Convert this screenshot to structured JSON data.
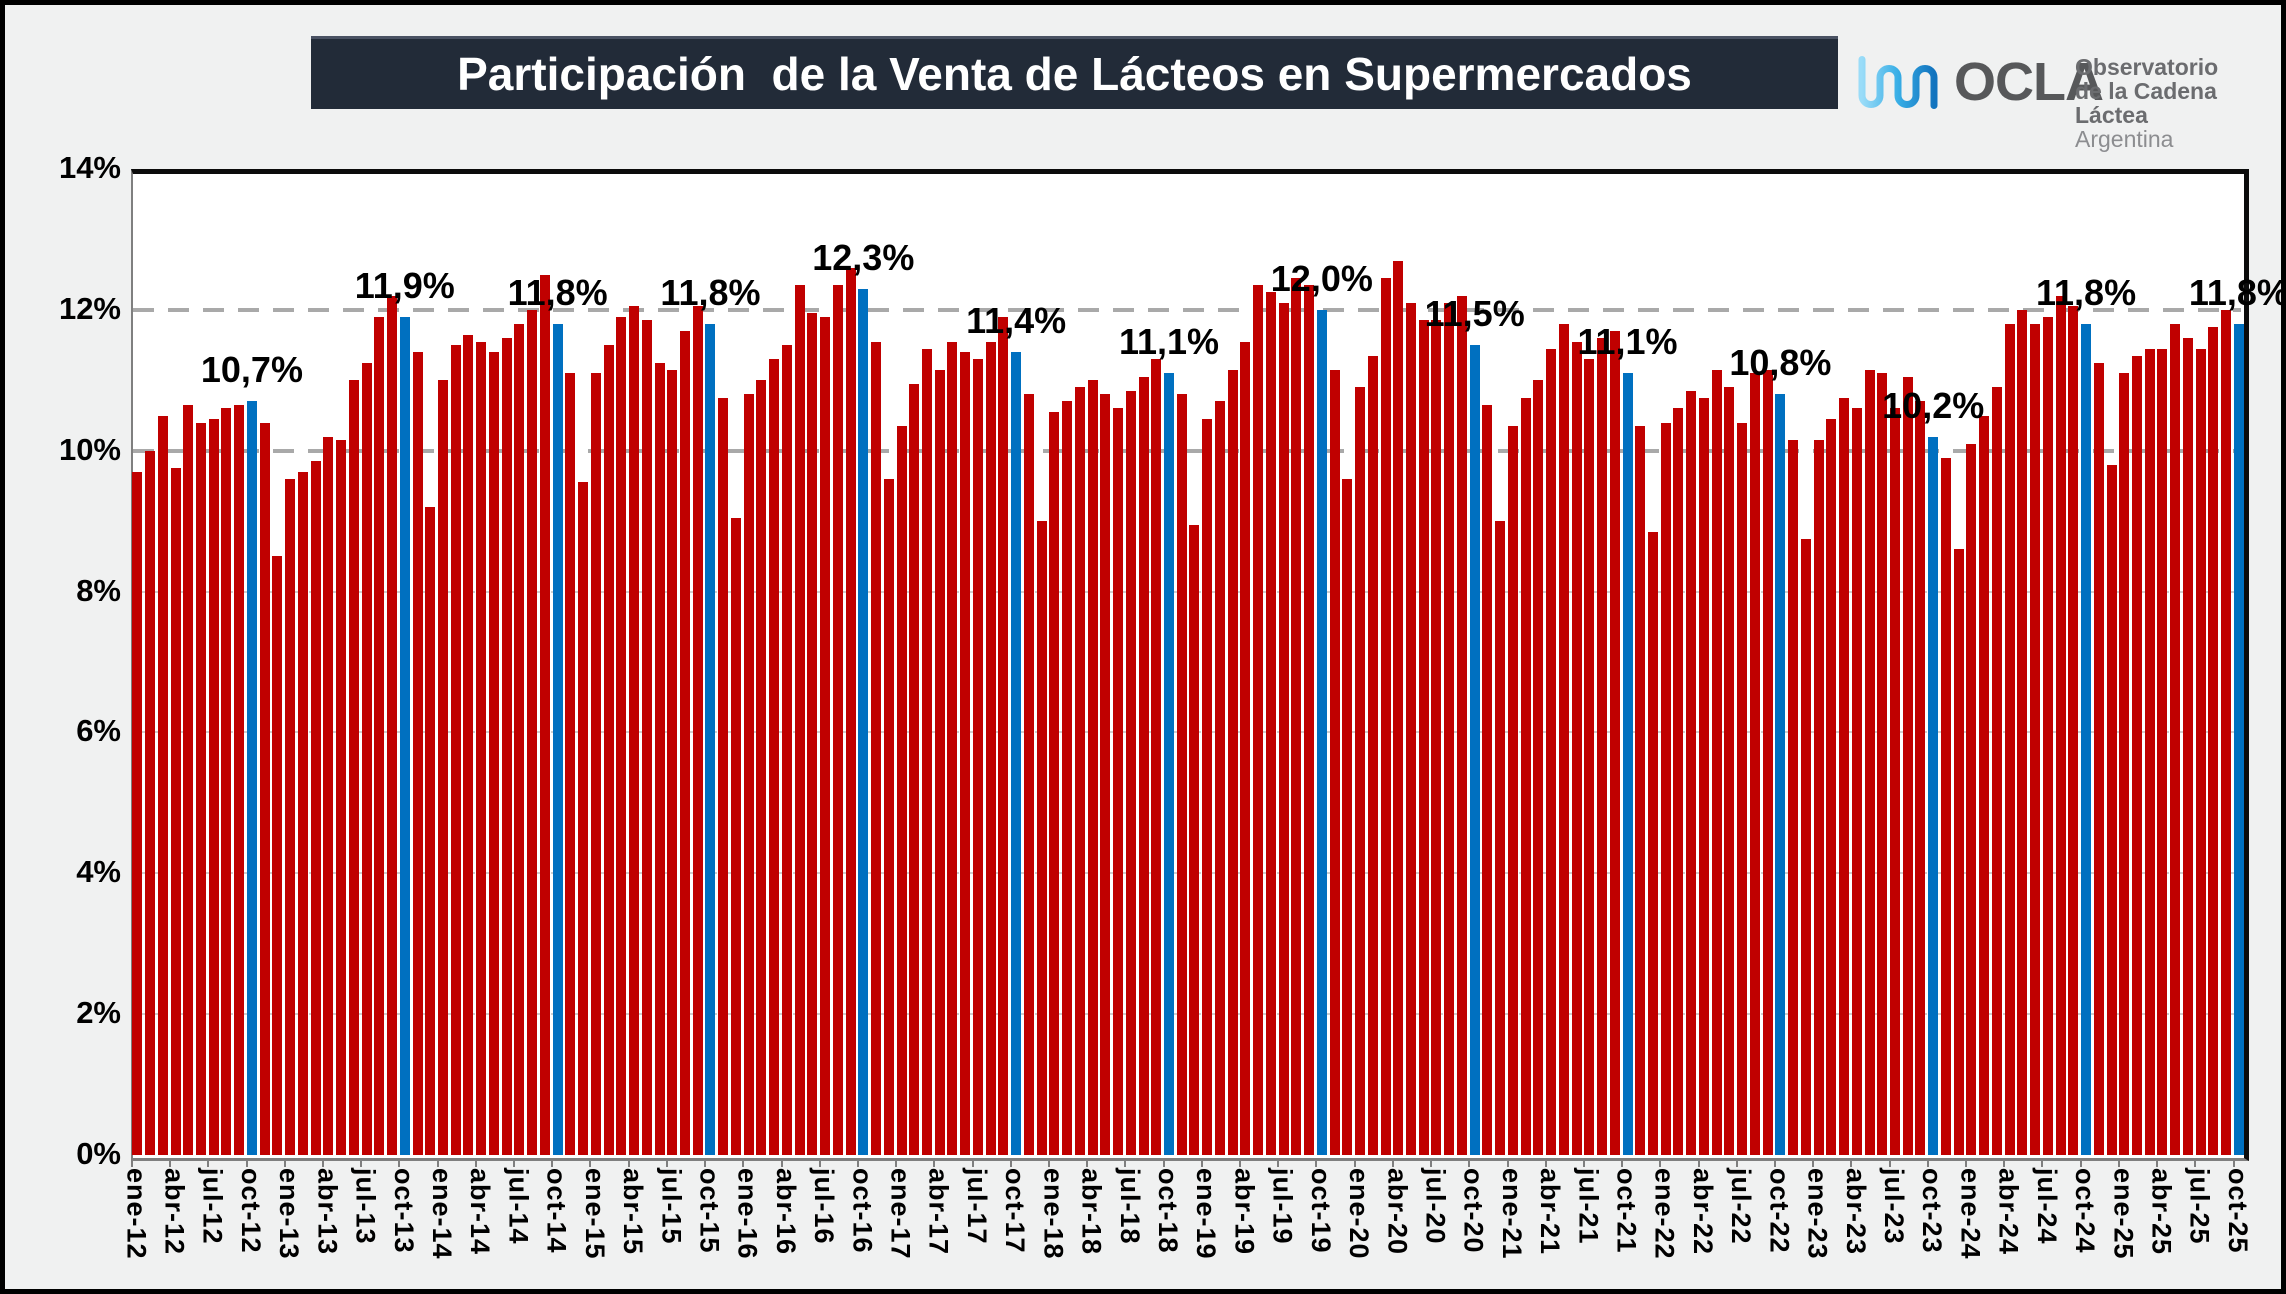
{
  "title": {
    "text": "Participación  de la Venta de Lácteos en Supermercados"
  },
  "logo": {
    "wave_icon": "wave-icon",
    "acronym": "OCLA",
    "line1": "Observatorio",
    "line2": "de la Cadena Láctea",
    "line3": "Argentina"
  },
  "chart_data": {
    "type": "bar",
    "title": "Participación de la Venta de Lácteos en Supermercados",
    "xlabel": "",
    "ylabel": "",
    "ylim": [
      0,
      14
    ],
    "grid": "horizontal dashed every 2%",
    "legend": "none",
    "y_tick_labels": [
      "0%",
      "2%",
      "4%",
      "6%",
      "8%",
      "10%",
      "12%",
      "14%"
    ],
    "x_tick_every_n_months": 3,
    "colors": {
      "default": "#C00000",
      "october": "#0070C0"
    },
    "highlight_rule": "october bars are blue and carry a data label",
    "categories": [
      "ene-12",
      "feb-12",
      "mar-12",
      "abr-12",
      "may-12",
      "jun-12",
      "jul-12",
      "ago-12",
      "sep-12",
      "oct-12",
      "nov-12",
      "dic-12",
      "ene-13",
      "feb-13",
      "mar-13",
      "abr-13",
      "may-13",
      "jun-13",
      "jul-13",
      "ago-13",
      "sep-13",
      "oct-13",
      "nov-13",
      "dic-13",
      "ene-14",
      "feb-14",
      "mar-14",
      "abr-14",
      "may-14",
      "jun-14",
      "jul-14",
      "ago-14",
      "sep-14",
      "oct-14",
      "nov-14",
      "dic-14",
      "ene-15",
      "feb-15",
      "mar-15",
      "abr-15",
      "may-15",
      "jun-15",
      "jul-15",
      "ago-15",
      "sep-15",
      "oct-15",
      "nov-15",
      "dic-15",
      "ene-16",
      "feb-16",
      "mar-16",
      "abr-16",
      "may-16",
      "jun-16",
      "jul-16",
      "ago-16",
      "sep-16",
      "oct-16",
      "nov-16",
      "dic-16",
      "ene-17",
      "feb-17",
      "mar-17",
      "abr-17",
      "may-17",
      "jun-17",
      "jul-17",
      "ago-17",
      "sep-17",
      "oct-17",
      "nov-17",
      "dic-17",
      "ene-18",
      "feb-18",
      "mar-18",
      "abr-18",
      "may-18",
      "jun-18",
      "jul-18",
      "ago-18",
      "sep-18",
      "oct-18",
      "nov-18",
      "dic-18",
      "ene-19",
      "feb-19",
      "mar-19",
      "abr-19",
      "may-19",
      "jun-19",
      "jul-19",
      "ago-19",
      "sep-19",
      "oct-19",
      "nov-19",
      "dic-19",
      "ene-20",
      "feb-20",
      "mar-20",
      "abr-20",
      "may-20",
      "jun-20",
      "jul-20",
      "ago-20",
      "sep-20",
      "oct-20",
      "nov-20",
      "dic-20",
      "ene-21",
      "feb-21",
      "mar-21",
      "abr-21",
      "may-21",
      "jun-21",
      "jul-21",
      "ago-21",
      "sep-21",
      "oct-21",
      "nov-21",
      "dic-21",
      "ene-22",
      "feb-22",
      "mar-22",
      "abr-22",
      "may-22",
      "jun-22",
      "jul-22",
      "ago-22",
      "sep-22",
      "oct-22",
      "nov-22",
      "dic-22",
      "ene-23",
      "feb-23",
      "mar-23",
      "abr-23",
      "may-23",
      "jun-23",
      "jul-23",
      "ago-23",
      "sep-23",
      "oct-23",
      "nov-23",
      "dic-23",
      "ene-24",
      "feb-24",
      "mar-24",
      "abr-24",
      "may-24",
      "jun-24",
      "jul-24",
      "ago-24",
      "sep-24",
      "oct-24",
      "nov-24",
      "dic-24",
      "ene-25",
      "feb-25",
      "mar-25",
      "abr-25",
      "may-25",
      "jun-25",
      "jul-25",
      "ago-25",
      "sep-25",
      "oct-25"
    ],
    "values": [
      9.7,
      10.0,
      10.5,
      9.75,
      10.65,
      10.4,
      10.45,
      10.6,
      10.65,
      10.7,
      10.4,
      8.5,
      9.6,
      9.7,
      9.85,
      10.2,
      10.15,
      11.0,
      11.25,
      11.9,
      12.2,
      11.9,
      11.4,
      9.2,
      11.0,
      11.5,
      11.65,
      11.55,
      11.4,
      11.6,
      11.8,
      12.0,
      12.5,
      11.8,
      11.1,
      9.55,
      11.1,
      11.5,
      11.9,
      12.05,
      11.85,
      11.25,
      11.15,
      11.7,
      12.05,
      11.8,
      10.75,
      9.05,
      10.8,
      11.0,
      11.3,
      11.5,
      12.35,
      11.95,
      11.9,
      12.35,
      12.6,
      12.3,
      11.55,
      9.6,
      10.35,
      10.95,
      11.45,
      11.15,
      11.55,
      11.4,
      11.3,
      11.55,
      11.9,
      11.4,
      10.8,
      9.0,
      10.55,
      10.7,
      10.9,
      11.0,
      10.8,
      10.6,
      10.85,
      11.05,
      11.3,
      11.1,
      10.8,
      8.95,
      10.45,
      10.7,
      11.15,
      11.55,
      12.35,
      12.25,
      12.1,
      12.45,
      12.35,
      12.0,
      11.15,
      9.6,
      10.9,
      11.35,
      12.45,
      12.7,
      12.1,
      11.85,
      11.85,
      12.1,
      12.2,
      11.5,
      10.65,
      9.0,
      10.35,
      10.75,
      11.0,
      11.45,
      11.8,
      11.55,
      11.3,
      11.6,
      11.7,
      11.1,
      10.35,
      8.85,
      10.4,
      10.6,
      10.85,
      10.75,
      11.15,
      10.9,
      10.4,
      11.1,
      11.15,
      10.8,
      10.15,
      8.75,
      10.15,
      10.45,
      10.75,
      10.6,
      11.15,
      11.1,
      10.6,
      11.05,
      10.7,
      10.2,
      9.9,
      8.6,
      10.1,
      10.5,
      10.9,
      11.8,
      12.0,
      11.8,
      11.9,
      12.2,
      12.05,
      11.8,
      11.25,
      9.8,
      11.1,
      11.35,
      11.45,
      11.45,
      11.8,
      11.6,
      11.45,
      11.75,
      12.0,
      11.8
    ],
    "annotations": [
      {
        "category": "oct-12",
        "text": "10,7%"
      },
      {
        "category": "oct-13",
        "text": "11,9%"
      },
      {
        "category": "oct-14",
        "text": "11,8%"
      },
      {
        "category": "oct-15",
        "text": "11,8%"
      },
      {
        "category": "oct-16",
        "text": "12,3%"
      },
      {
        "category": "oct-17",
        "text": "11,4%"
      },
      {
        "category": "oct-18",
        "text": "11,1%"
      },
      {
        "category": "oct-19",
        "text": "12,0%"
      },
      {
        "category": "oct-20",
        "text": "11,5%"
      },
      {
        "category": "oct-21",
        "text": "11,1%"
      },
      {
        "category": "oct-22",
        "text": "10,8%"
      },
      {
        "category": "oct-23",
        "text": "10,2%"
      },
      {
        "category": "oct-24",
        "text": "11,8%"
      },
      {
        "category": "oct-25",
        "text": "11,8%"
      }
    ]
  }
}
